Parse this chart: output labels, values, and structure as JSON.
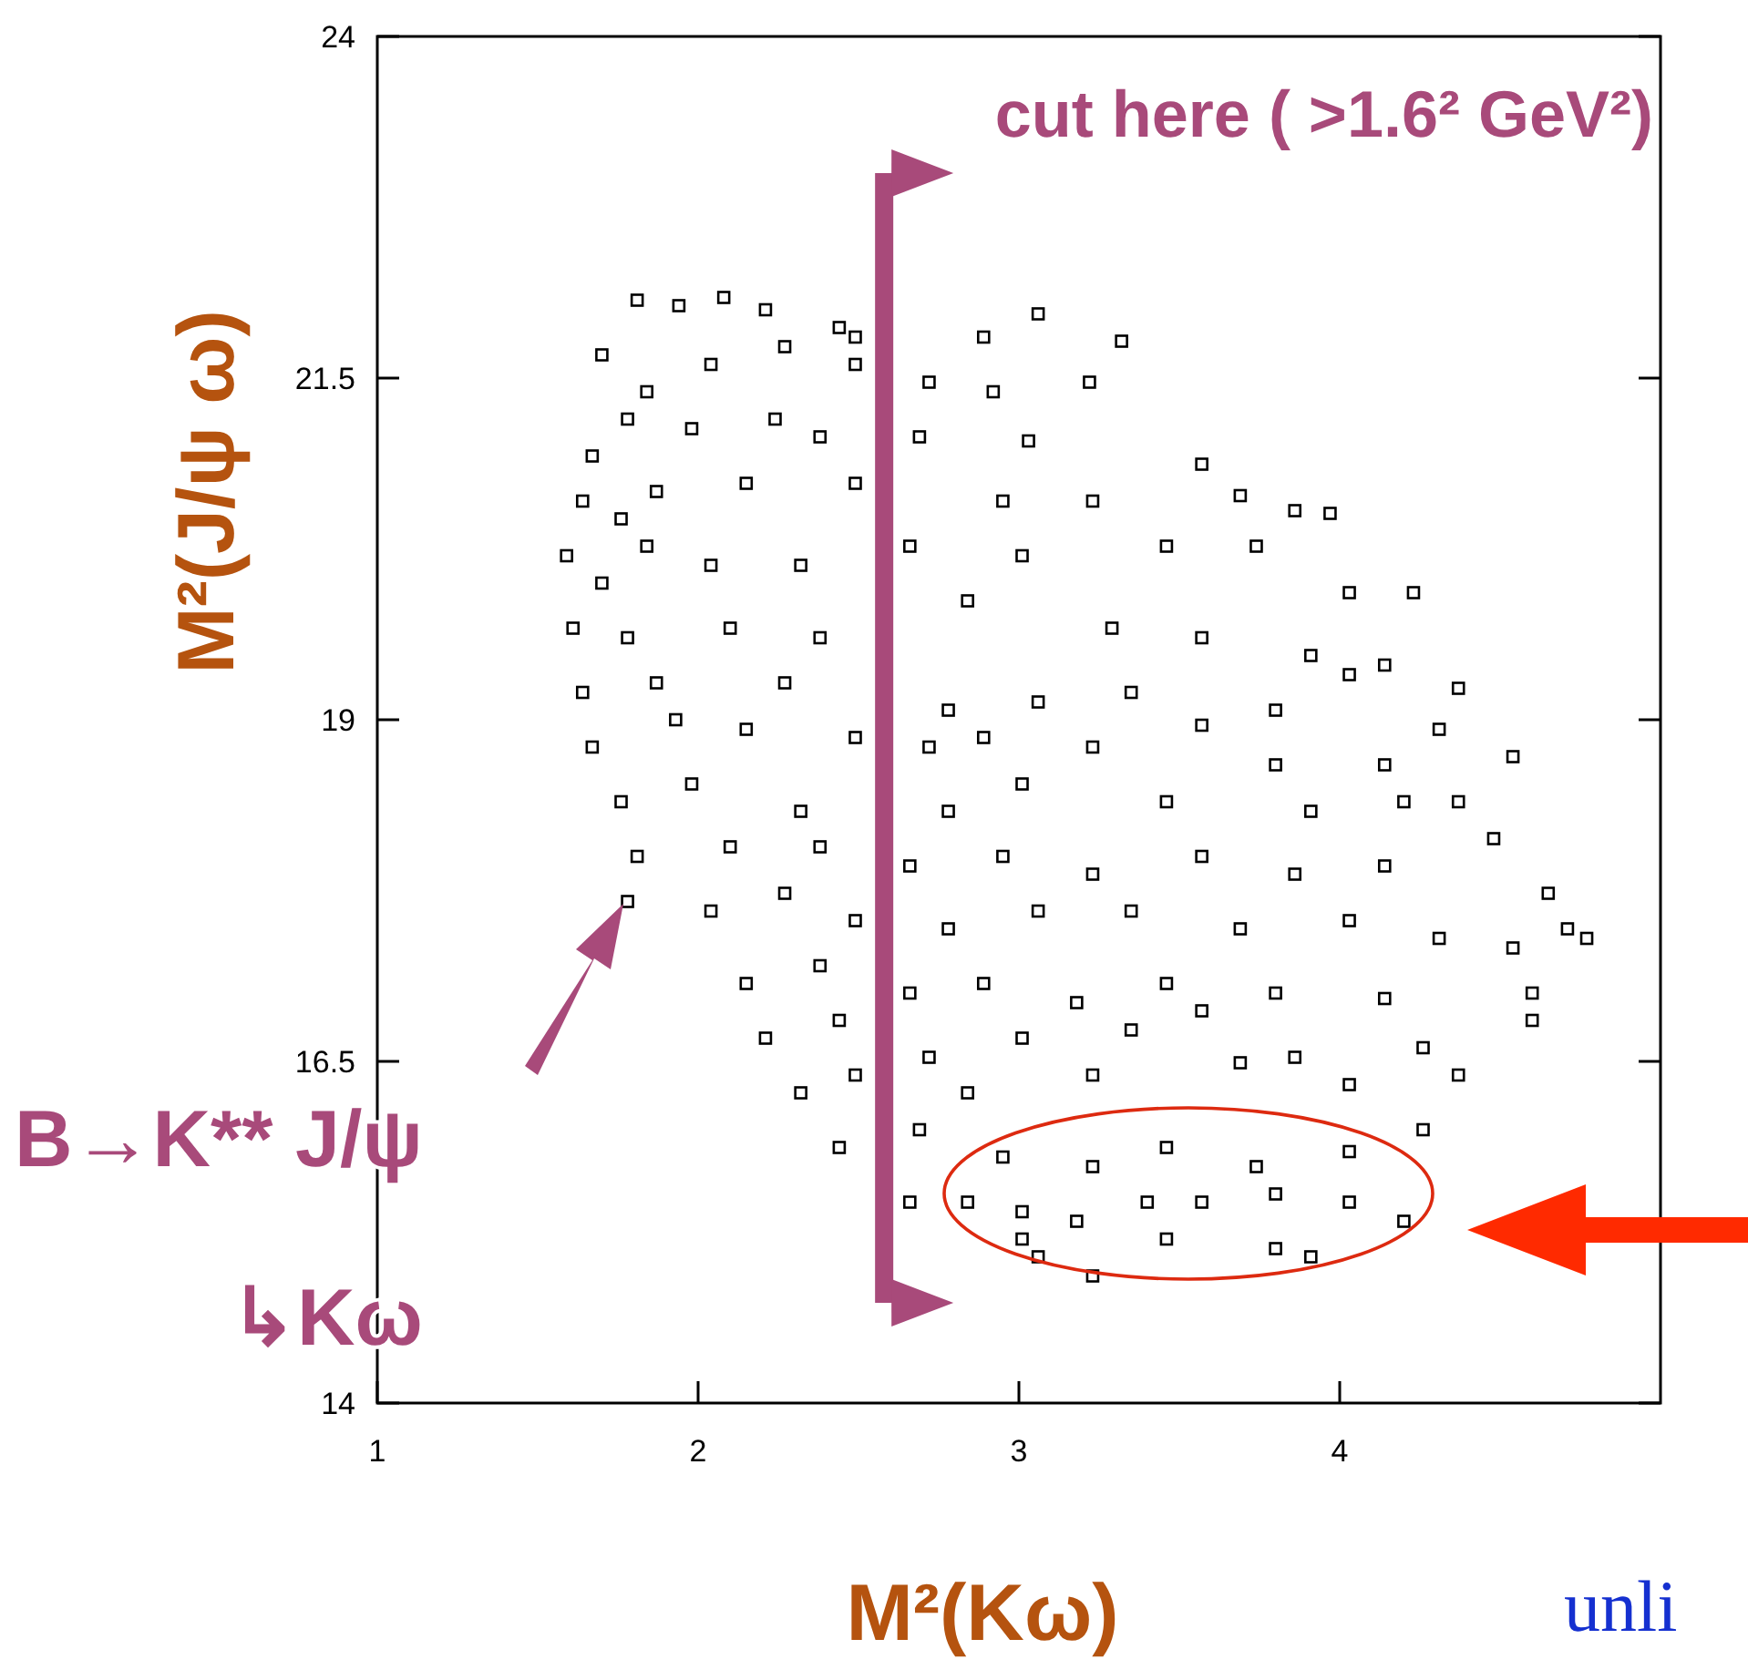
{
  "chart_data": {
    "type": "scatter",
    "xlabel": "M²(Kω)",
    "ylabel": "M²(J/ψ ω)",
    "xlim": [
      1,
      5
    ],
    "ylim": [
      14,
      24
    ],
    "xticks": [
      1,
      2,
      3,
      4
    ],
    "yticks": [
      14,
      16.5,
      19,
      21.5,
      24
    ],
    "grid": false,
    "marker": "square",
    "series": [
      {
        "color": "#000000",
        "x": [
          1.81,
          1.94,
          2.08,
          2.21,
          2.44,
          2.49,
          2.89,
          3.06,
          3.32,
          1.7,
          1.84,
          2.04,
          2.27,
          2.49,
          2.72,
          2.92,
          3.22,
          3.57,
          3.69,
          3.86,
          3.97,
          1.67,
          1.78,
          1.98,
          2.24,
          2.38,
          2.69,
          3.03,
          1.64,
          1.76,
          1.87,
          2.15,
          2.49,
          2.95,
          3.23,
          1.59,
          1.7,
          1.84,
          2.04,
          2.32,
          2.66,
          3.01,
          3.46,
          3.74,
          4.03,
          4.23,
          1.61,
          1.78,
          2.1,
          2.38,
          2.84,
          3.29,
          3.57,
          3.91,
          4.14,
          4.37,
          1.64,
          1.87,
          2.27,
          2.78,
          3.06,
          3.35,
          3.8,
          4.03,
          4.31,
          4.54,
          1.67,
          1.93,
          2.15,
          2.49,
          2.72,
          2.89,
          3.23,
          3.57,
          3.8,
          4.14,
          4.37,
          1.76,
          1.98,
          2.32,
          2.78,
          3.01,
          3.46,
          3.91,
          4.2,
          1.81,
          2.1,
          2.38,
          2.66,
          2.95,
          3.23,
          3.57,
          3.86,
          4.14,
          4.48,
          4.65,
          1.78,
          2.04,
          2.27,
          2.49,
          2.78,
          3.06,
          3.35,
          3.69,
          4.03,
          4.31,
          4.54,
          4.71,
          4.77,
          2.15,
          2.38,
          2.66,
          2.89,
          3.18,
          3.46,
          3.8,
          4.14,
          4.6,
          2.21,
          2.44,
          2.72,
          3.01,
          3.35,
          3.57,
          3.86,
          4.26,
          4.6,
          2.32,
          2.49,
          2.84,
          3.23,
          3.69,
          4.03,
          4.37,
          2.44,
          2.69,
          2.95,
          3.23,
          3.46,
          3.74,
          4.03,
          4.26,
          2.66,
          2.84,
          3.01,
          3.18,
          3.4,
          3.57,
          3.8,
          4.03,
          4.2,
          3.06,
          3.23,
          3.46,
          3.8,
          3.91,
          3.01
        ],
        "values": [
          22.07,
          22.03,
          22.09,
          22.0,
          21.87,
          21.8,
          21.8,
          21.97,
          21.77,
          21.67,
          21.4,
          21.6,
          21.73,
          21.6,
          21.47,
          21.4,
          21.47,
          20.87,
          20.64,
          20.53,
          20.51,
          20.93,
          21.2,
          21.13,
          21.2,
          21.07,
          21.07,
          21.04,
          20.6,
          20.47,
          20.67,
          20.73,
          20.73,
          20.6,
          20.6,
          20.2,
          20.0,
          20.27,
          20.13,
          20.13,
          20.27,
          20.2,
          20.27,
          20.27,
          19.93,
          19.93,
          19.67,
          19.6,
          19.67,
          19.6,
          19.87,
          19.67,
          19.6,
          19.47,
          19.4,
          19.23,
          19.2,
          19.27,
          19.27,
          19.07,
          19.13,
          19.2,
          19.07,
          19.33,
          18.93,
          18.73,
          18.8,
          19.0,
          18.93,
          18.87,
          18.8,
          18.87,
          18.8,
          18.96,
          18.67,
          18.67,
          18.4,
          18.4,
          18.53,
          18.33,
          18.33,
          18.53,
          18.4,
          18.33,
          18.4,
          18.0,
          18.07,
          18.07,
          17.93,
          18.0,
          17.87,
          18.0,
          17.87,
          17.93,
          18.13,
          17.73,
          17.67,
          17.6,
          17.73,
          17.53,
          17.47,
          17.6,
          17.6,
          17.47,
          17.53,
          17.4,
          17.33,
          17.47,
          17.4,
          17.07,
          17.2,
          17.0,
          17.07,
          16.93,
          17.07,
          17.0,
          16.96,
          17.0,
          16.67,
          16.8,
          16.53,
          16.67,
          16.73,
          16.87,
          16.53,
          16.6,
          16.8,
          16.27,
          16.4,
          16.27,
          16.4,
          16.49,
          16.33,
          16.4,
          15.87,
          16.0,
          15.8,
          15.73,
          15.87,
          15.73,
          15.84,
          16.0,
          15.47,
          15.47,
          15.4,
          15.33,
          15.47,
          15.47,
          15.53,
          15.47,
          15.33,
          15.07,
          14.93,
          15.2,
          15.13,
          15.07,
          15.2
        ]
      }
    ],
    "ref_lines": [
      {
        "axis": "x",
        "value": 2.58,
        "label": "cut here ( >1.6² GeV²)",
        "color": "#a84a7a"
      }
    ],
    "annotations": [
      "B→K** J/ψ",
      "↳Kω",
      "unli"
    ]
  }
}
